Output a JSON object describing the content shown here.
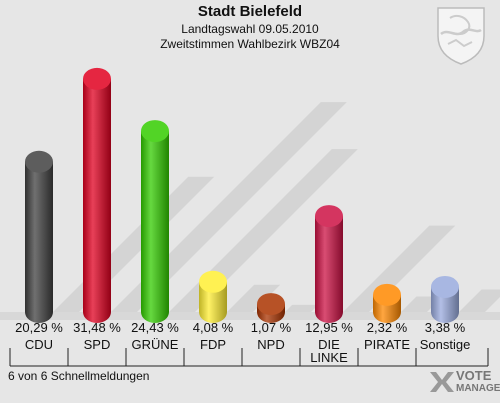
{
  "header": {
    "title": "Stadt Bielefeld",
    "subtitle1": "Landtagswahl 09.05.2010",
    "subtitle2": "Zweitstimmen Wahlbezirk WBZ04"
  },
  "footer": "6 von 6 Schnellmeldungen",
  "brand": {
    "line1": "VOTE",
    "line2": "MANAGER"
  },
  "chart_data": {
    "type": "bar",
    "categories": [
      "CDU",
      "SPD",
      "GRÜNE",
      "FDP",
      "NPD",
      "DIE LINKE",
      "PIRATE",
      "Sonstige"
    ],
    "values": [
      20.29,
      31.48,
      24.43,
      4.08,
      1.07,
      12.95,
      2.32,
      3.38
    ],
    "value_labels": [
      "20,29 %",
      "31,48 %",
      "24,43 %",
      "4,08 %",
      "1,07 %",
      "12,95 %",
      "2,32 %",
      "3,38 %"
    ],
    "colors": [
      "#404040",
      "#e00020",
      "#33cc00",
      "#ffee33",
      "#aa3300",
      "#cc1144",
      "#ff8800",
      "#99aadd"
    ],
    "ylim": [
      0,
      32
    ]
  }
}
